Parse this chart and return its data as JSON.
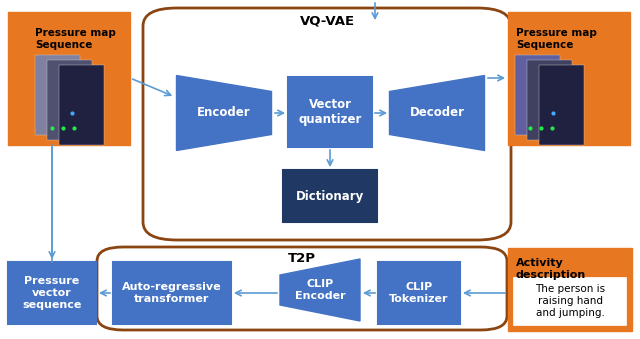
{
  "bg_color": "#ffffff",
  "orange": "#E87722",
  "blue_box": "#4472C4",
  "dark_blue": "#1F3864",
  "light_blue_arrow": "#5B9BD5",
  "brown_border": "#8B4513",
  "title_vqvae": "VQ-VAE",
  "title_t2p": "T2P",
  "encoder_label": "Encoder",
  "vq_label": "Vector\nquantizer",
  "decoder_label": "Decoder",
  "dictionary_label": "Dictionary",
  "autoregressive_label": "Auto-regressive\ntransformer",
  "clip_encoder_label": "CLIP\nEncoder",
  "clip_tokenizer_label": "CLIP\nTokenizer",
  "pressure_vector_label": "Pressure\nvector\nsequence",
  "pressure_map_left_label": "Pressure map\nSequence",
  "pressure_map_right_label": "Pressure map\nSequence",
  "activity_label": "Activity\ndescription",
  "activity_text": "The person is\nraising hand\nand jumping."
}
